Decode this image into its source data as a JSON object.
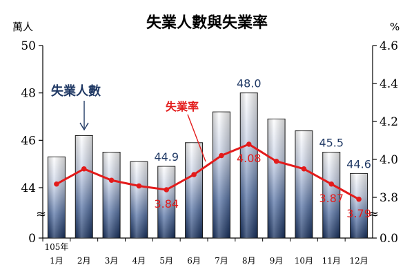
{
  "chart_data": {
    "type": "bar",
    "title": "失業人數與失業率",
    "left_unit": "萬人",
    "right_unit": "%",
    "year_label": "105年",
    "categories": [
      "1月",
      "2月",
      "3月",
      "4月",
      "5月",
      "6月",
      "7月",
      "8月",
      "9月",
      "10月",
      "11月",
      "12月"
    ],
    "series": [
      {
        "name": "失業人數",
        "type": "bar",
        "axis": "left",
        "color": "#1f3864",
        "values": [
          45.3,
          46.2,
          45.5,
          45.1,
          44.9,
          45.9,
          47.2,
          48.0,
          46.9,
          46.4,
          45.5,
          44.6
        ],
        "data_labels": {
          "4": "44.9",
          "7": "48.0",
          "10": "45.5",
          "11": "44.6"
        }
      },
      {
        "name": "失業率",
        "type": "line",
        "axis": "right",
        "color": "#e31b1b",
        "values": [
          3.87,
          3.95,
          3.89,
          3.86,
          3.84,
          3.92,
          4.02,
          4.08,
          3.99,
          3.95,
          3.87,
          3.79
        ],
        "data_labels": {
          "4": "3.84",
          "7": "4.08",
          "10": "3.87",
          "11": "3.79"
        }
      }
    ],
    "left_axis": {
      "ticks": [
        "0",
        "44",
        "46",
        "48",
        "50"
      ],
      "broken": true
    },
    "right_axis": {
      "ticks": [
        "0.0",
        "3.8",
        "4.0",
        "4.2",
        "4.4",
        "4.6"
      ],
      "broken": true
    },
    "grid": false
  }
}
